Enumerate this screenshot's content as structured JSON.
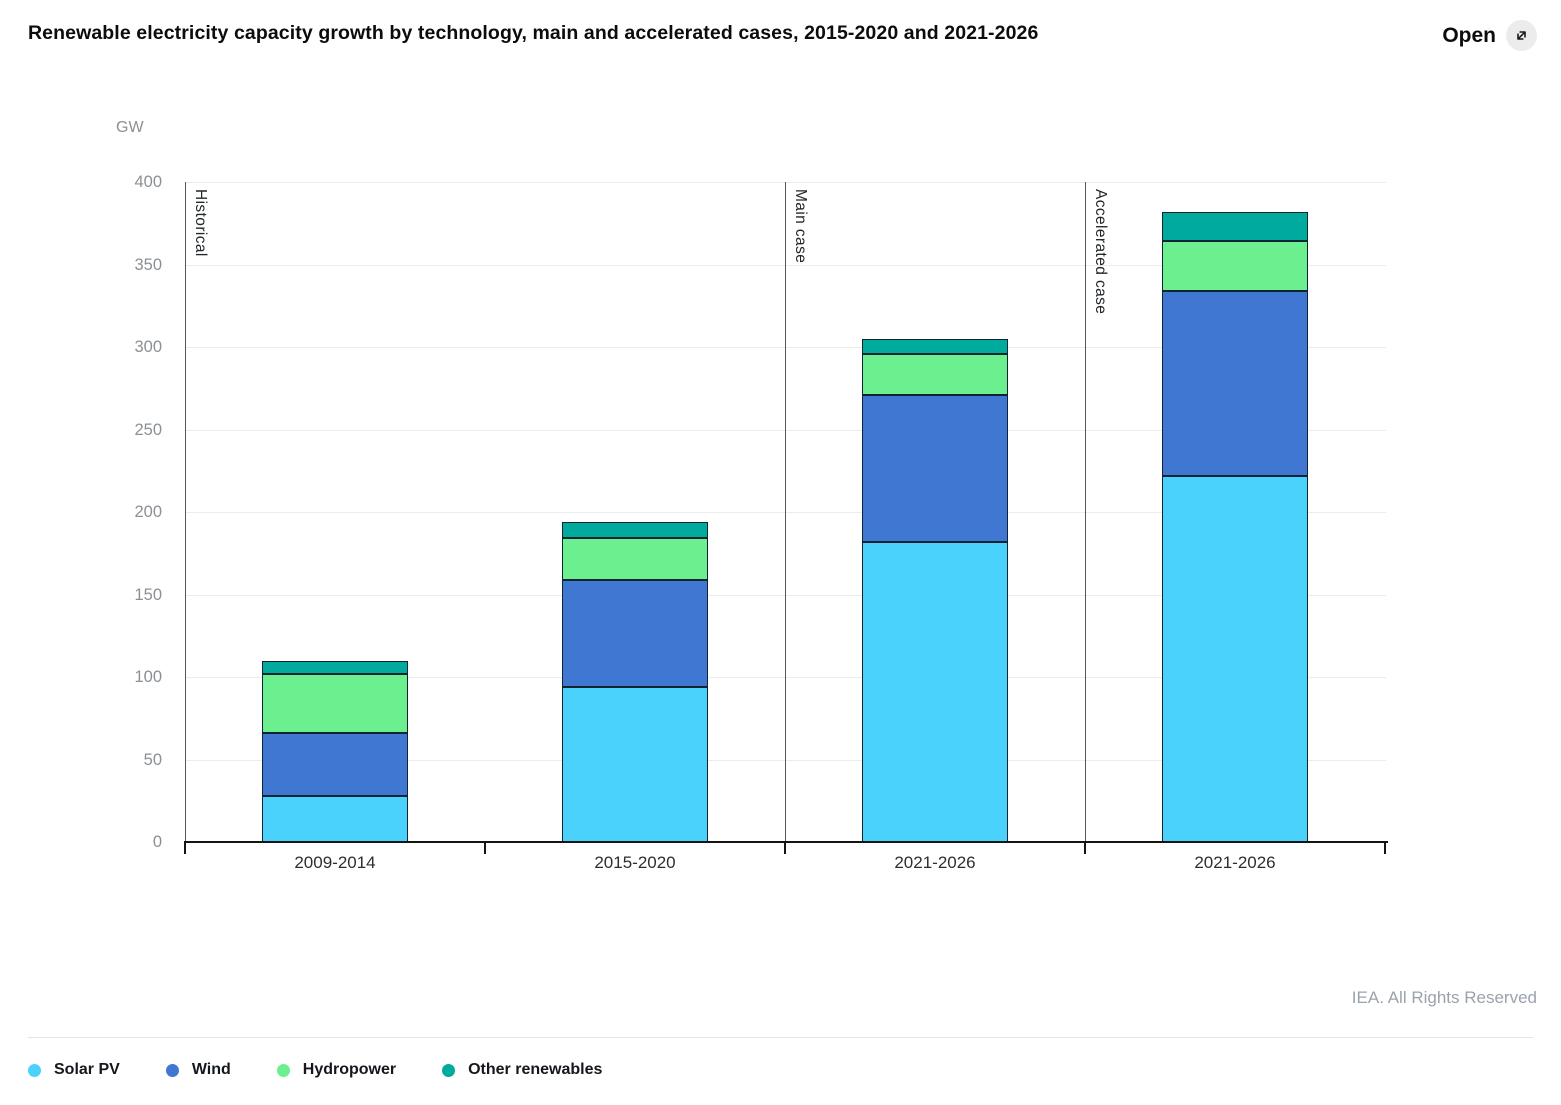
{
  "header": {
    "title": "Renewable electricity capacity growth by technology, main and accelerated cases, 2015-2020 and 2021-2026",
    "open_label": "Open",
    "open_icon": "expand-icon"
  },
  "footer": {
    "credit": "IEA. All Rights Reserved"
  },
  "chart_data": {
    "type": "bar",
    "stacked": true,
    "title": "Renewable electricity capacity growth by technology, main and accelerated cases, 2015-2020 and 2021-2026",
    "unit_label": "GW",
    "categories": [
      "2009-2014",
      "2015-2020",
      "2021-2026",
      "2021-2026"
    ],
    "sections": [
      {
        "label": "Historical",
        "divider_before_category": 0
      },
      {
        "label": "Main case",
        "divider_before_category": 2
      },
      {
        "label": "Accelerated case",
        "divider_before_category": 3
      }
    ],
    "series": [
      {
        "name": "Solar PV",
        "color": "#4AD2FC",
        "values": [
          28,
          94,
          182,
          222
        ]
      },
      {
        "name": "Wind",
        "color": "#3F77D2",
        "values": [
          38,
          65,
          89,
          112
        ]
      },
      {
        "name": "Hydropower",
        "color": "#6CF08F",
        "values": [
          36,
          25,
          25,
          30
        ]
      },
      {
        "name": "Other renewables",
        "color": "#00AA9C",
        "values": [
          8,
          10,
          9,
          18
        ]
      }
    ],
    "ylim": [
      0,
      400
    ],
    "yticks": [
      0,
      50,
      100,
      150,
      200,
      250,
      300,
      350,
      400
    ],
    "grid": true,
    "legend_position": "bottom",
    "colors": {
      "segment_border": "#0e2430",
      "gridline": "#ececec",
      "divider": "#55595d",
      "axis": "#141414"
    }
  }
}
